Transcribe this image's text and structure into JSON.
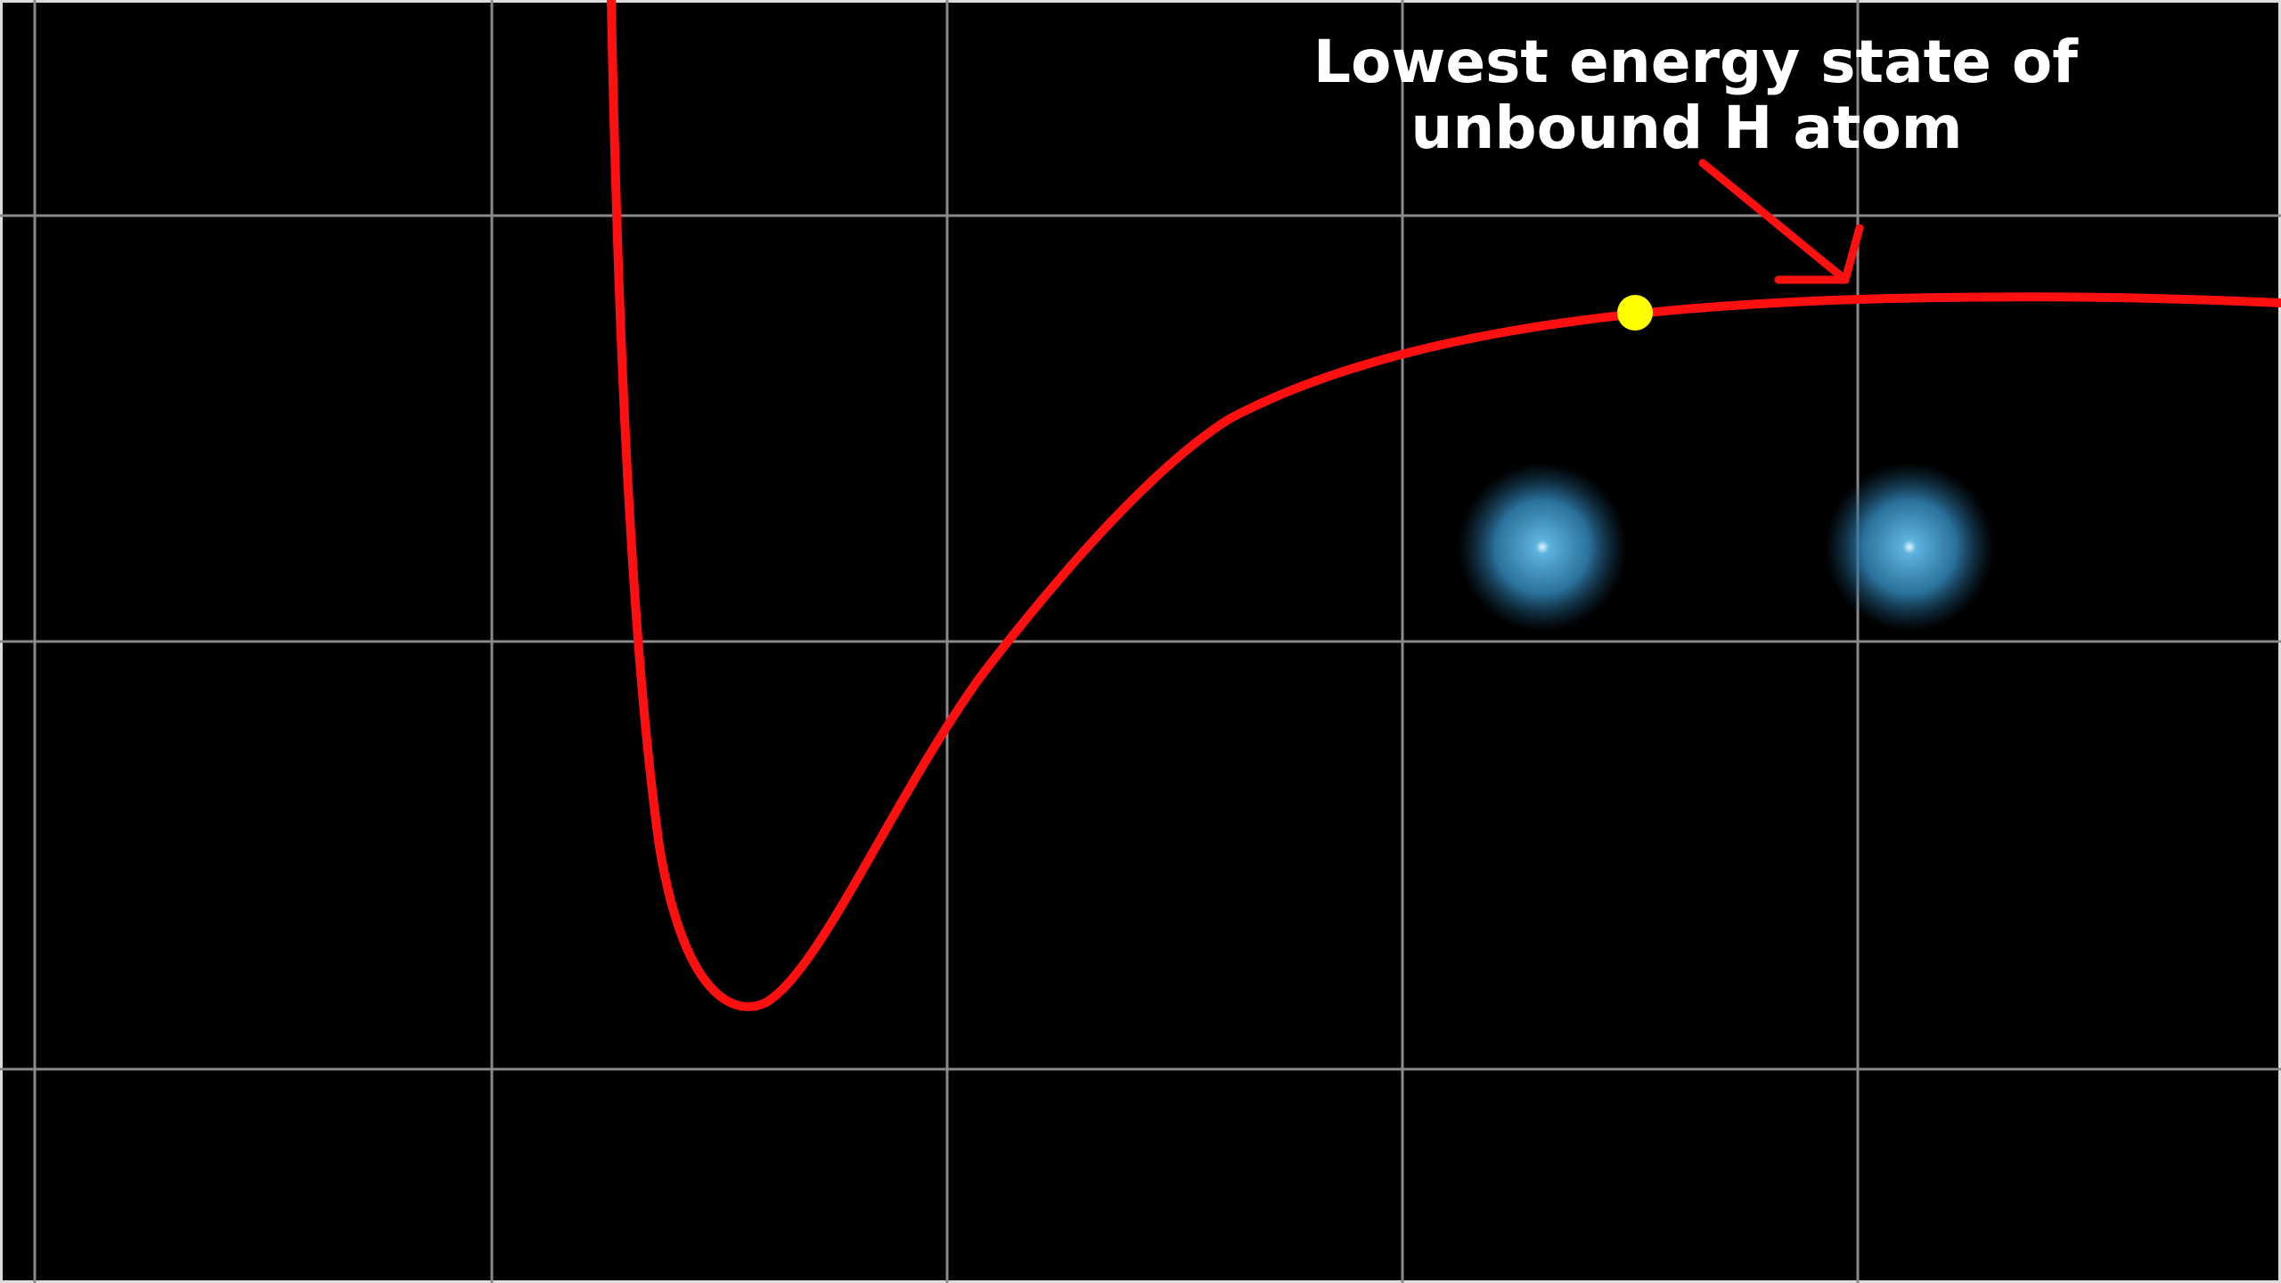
{
  "annotation": {
    "lines": [
      "Lowest energy state of",
      "unbound H atom"
    ]
  }
}
